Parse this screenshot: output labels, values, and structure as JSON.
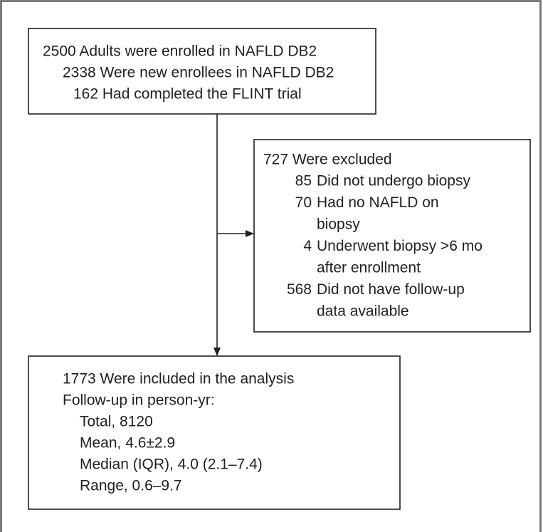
{
  "nodes": [
    {
      "lines": [
        "2500 Adults were enrolled in NAFLD DB2",
        "2338 Were new enrollees in NAFLD DB2",
        "162 Had completed the FLINT trial"
      ]
    },
    {
      "title": "727 Were excluded",
      "items": [
        {
          "count": "85",
          "lines": [
            "Did not undergo biopsy"
          ]
        },
        {
          "count": "70",
          "lines": [
            "Had no NAFLD on",
            "biopsy"
          ]
        },
        {
          "count": "4",
          "lines": [
            "Underwent biopsy >6 mo",
            "after enrollment"
          ]
        },
        {
          "count": "568",
          "lines": [
            "Did not have follow-up",
            "data available"
          ]
        }
      ]
    },
    {
      "lines": [
        "1773 Were included in the analysis",
        "Follow-up in person-yr:",
        "Total, 8120",
        "Mean, 4.6±2.9",
        "Median (IQR), 4.0 (2.1–7.4)",
        "Range, 0.6–9.7"
      ]
    }
  ]
}
